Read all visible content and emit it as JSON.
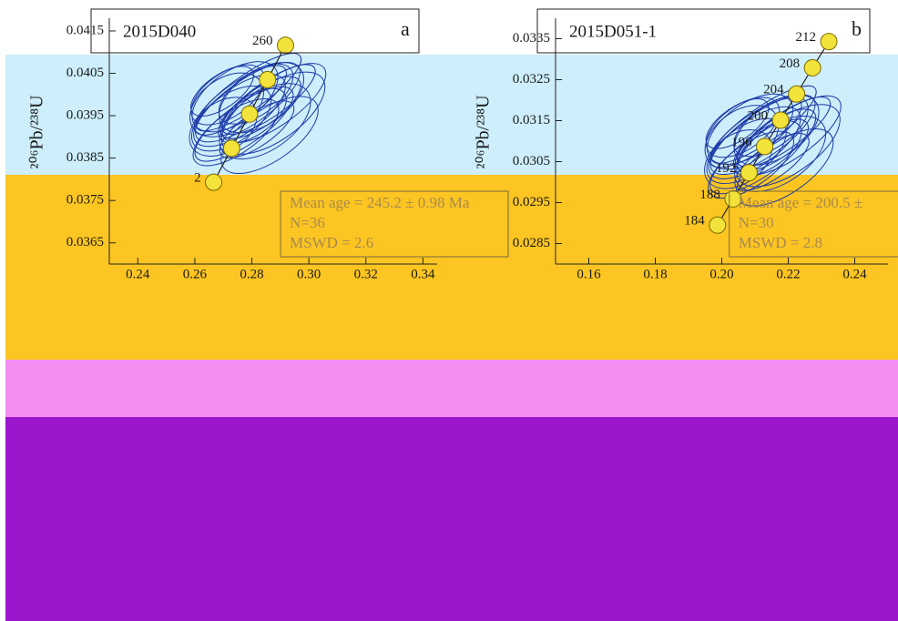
{
  "chart_data": [
    {
      "type": "concordia",
      "title": "2015D040",
      "panel": "a",
      "ylabel": "²⁰⁶Pb/²³⁸U",
      "categories": [
        "260",
        null,
        null,
        null,
        "2"
      ],
      "x": [
        0.2918,
        0.2855,
        0.2792,
        0.2729,
        0.2666
      ],
      "values": [
        0.04116,
        0.04035,
        0.03954,
        0.03873,
        0.03793
      ],
      "xlim": [
        0.23,
        0.345
      ],
      "ylim": [
        0.036,
        0.0418
      ],
      "xticks": [
        0.24,
        0.26,
        0.28,
        {
          "value": 0.3,
          "label": "0.30"
        },
        0.32,
        0.34
      ],
      "yticks": [
        0.0365,
        0.0375,
        0.0385,
        0.0395,
        0.0405,
        0.0415
      ],
      "annotations": [
        "Mean age = 245.2 ± 0.98 Ma",
        "N=36",
        "MSWD = 2.6"
      ],
      "color": "#f2e23a"
    },
    {
      "type": "concordia",
      "title": "2015D051-1",
      "panel": "b",
      "ylabel": "²⁰⁶Pb/²³⁸U",
      "categories": [
        "212",
        "208",
        "204",
        "200",
        "196",
        "192",
        "188",
        "184"
      ],
      "x": [
        0.2322,
        0.2273,
        0.2225,
        0.2177,
        0.2129,
        0.2082,
        0.2034,
        0.1987
      ],
      "values": [
        0.03343,
        0.03279,
        0.03215,
        0.03151,
        0.03087,
        0.03023,
        0.02959,
        0.02895
      ],
      "xlim": [
        0.15,
        0.25
      ],
      "ylim": [
        0.028,
        0.034
      ],
      "xticks": [
        0.16,
        0.18,
        {
          "value": 0.2,
          "label": "0.20"
        },
        0.22,
        0.24
      ],
      "yticks": [
        0.0285,
        0.0295,
        0.0305,
        0.0315,
        0.0325,
        0.0335
      ],
      "annotations": [
        "Mean age = 200.5 ±",
        "N=30",
        "MSWD = 2.8"
      ],
      "color": "#f2e23a"
    }
  ]
}
